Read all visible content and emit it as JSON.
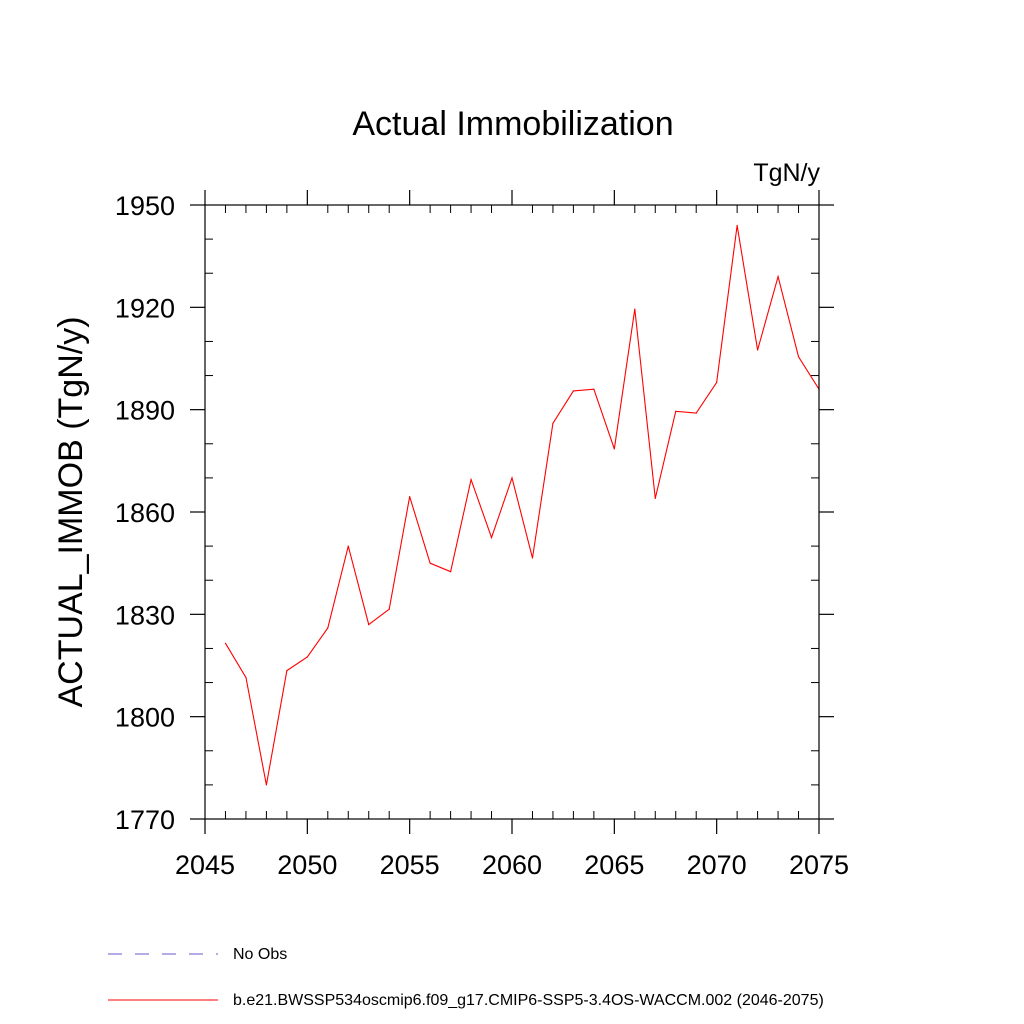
{
  "chart_data": {
    "type": "line",
    "title": "Actual Immobilization",
    "units_label": "TgN/y",
    "xlabel": "",
    "ylabel": "ACTUAL_IMMOB  (TgN/y)",
    "xlim": [
      2045,
      2075
    ],
    "ylim": [
      1770,
      1950
    ],
    "x_ticks": [
      2045,
      2050,
      2055,
      2060,
      2065,
      2070,
      2075
    ],
    "y_ticks": [
      1770,
      1800,
      1830,
      1860,
      1890,
      1920,
      1950
    ],
    "x_minor_step": 1,
    "y_minor_step": 10,
    "grid": false,
    "series": [
      {
        "name": "b.e21.BWSSP534oscmip6.f09_g17.CMIP6-SSP5-3.4OS-WACCM.002 (2046-2075)",
        "color": "#ff0000",
        "style": "solid",
        "x": [
          2046,
          2047,
          2048,
          2049,
          2050,
          2051,
          2052,
          2053,
          2054,
          2055,
          2056,
          2057,
          2058,
          2059,
          2060,
          2061,
          2062,
          2063,
          2064,
          2065,
          2066,
          2067,
          2068,
          2069,
          2070,
          2071,
          2072,
          2073,
          2074,
          2075
        ],
        "y": [
          1821.5,
          1811.5,
          1780.0,
          1813.5,
          1817.5,
          1826.0,
          1850.0,
          1827.0,
          1831.5,
          1864.5,
          1845.0,
          1842.5,
          1869.5,
          1852.5,
          1870.0,
          1846.5,
          1886.0,
          1895.5,
          1896.0,
          1878.5,
          1919.5,
          1864.0,
          1889.5,
          1889.0,
          1898.0,
          1944.0,
          1907.5,
          1929.0,
          1905.5,
          1896.0
        ]
      }
    ],
    "legend": {
      "placement": "bottom-left",
      "entries": [
        {
          "label": "No Obs",
          "color": "#6a5acd",
          "style": "dashed"
        },
        {
          "label": "b.e21.BWSSP534oscmip6.f09_g17.CMIP6-SSP5-3.4OS-WACCM.002 (2046-2075)",
          "color": "#ff0000",
          "style": "solid"
        }
      ]
    }
  }
}
